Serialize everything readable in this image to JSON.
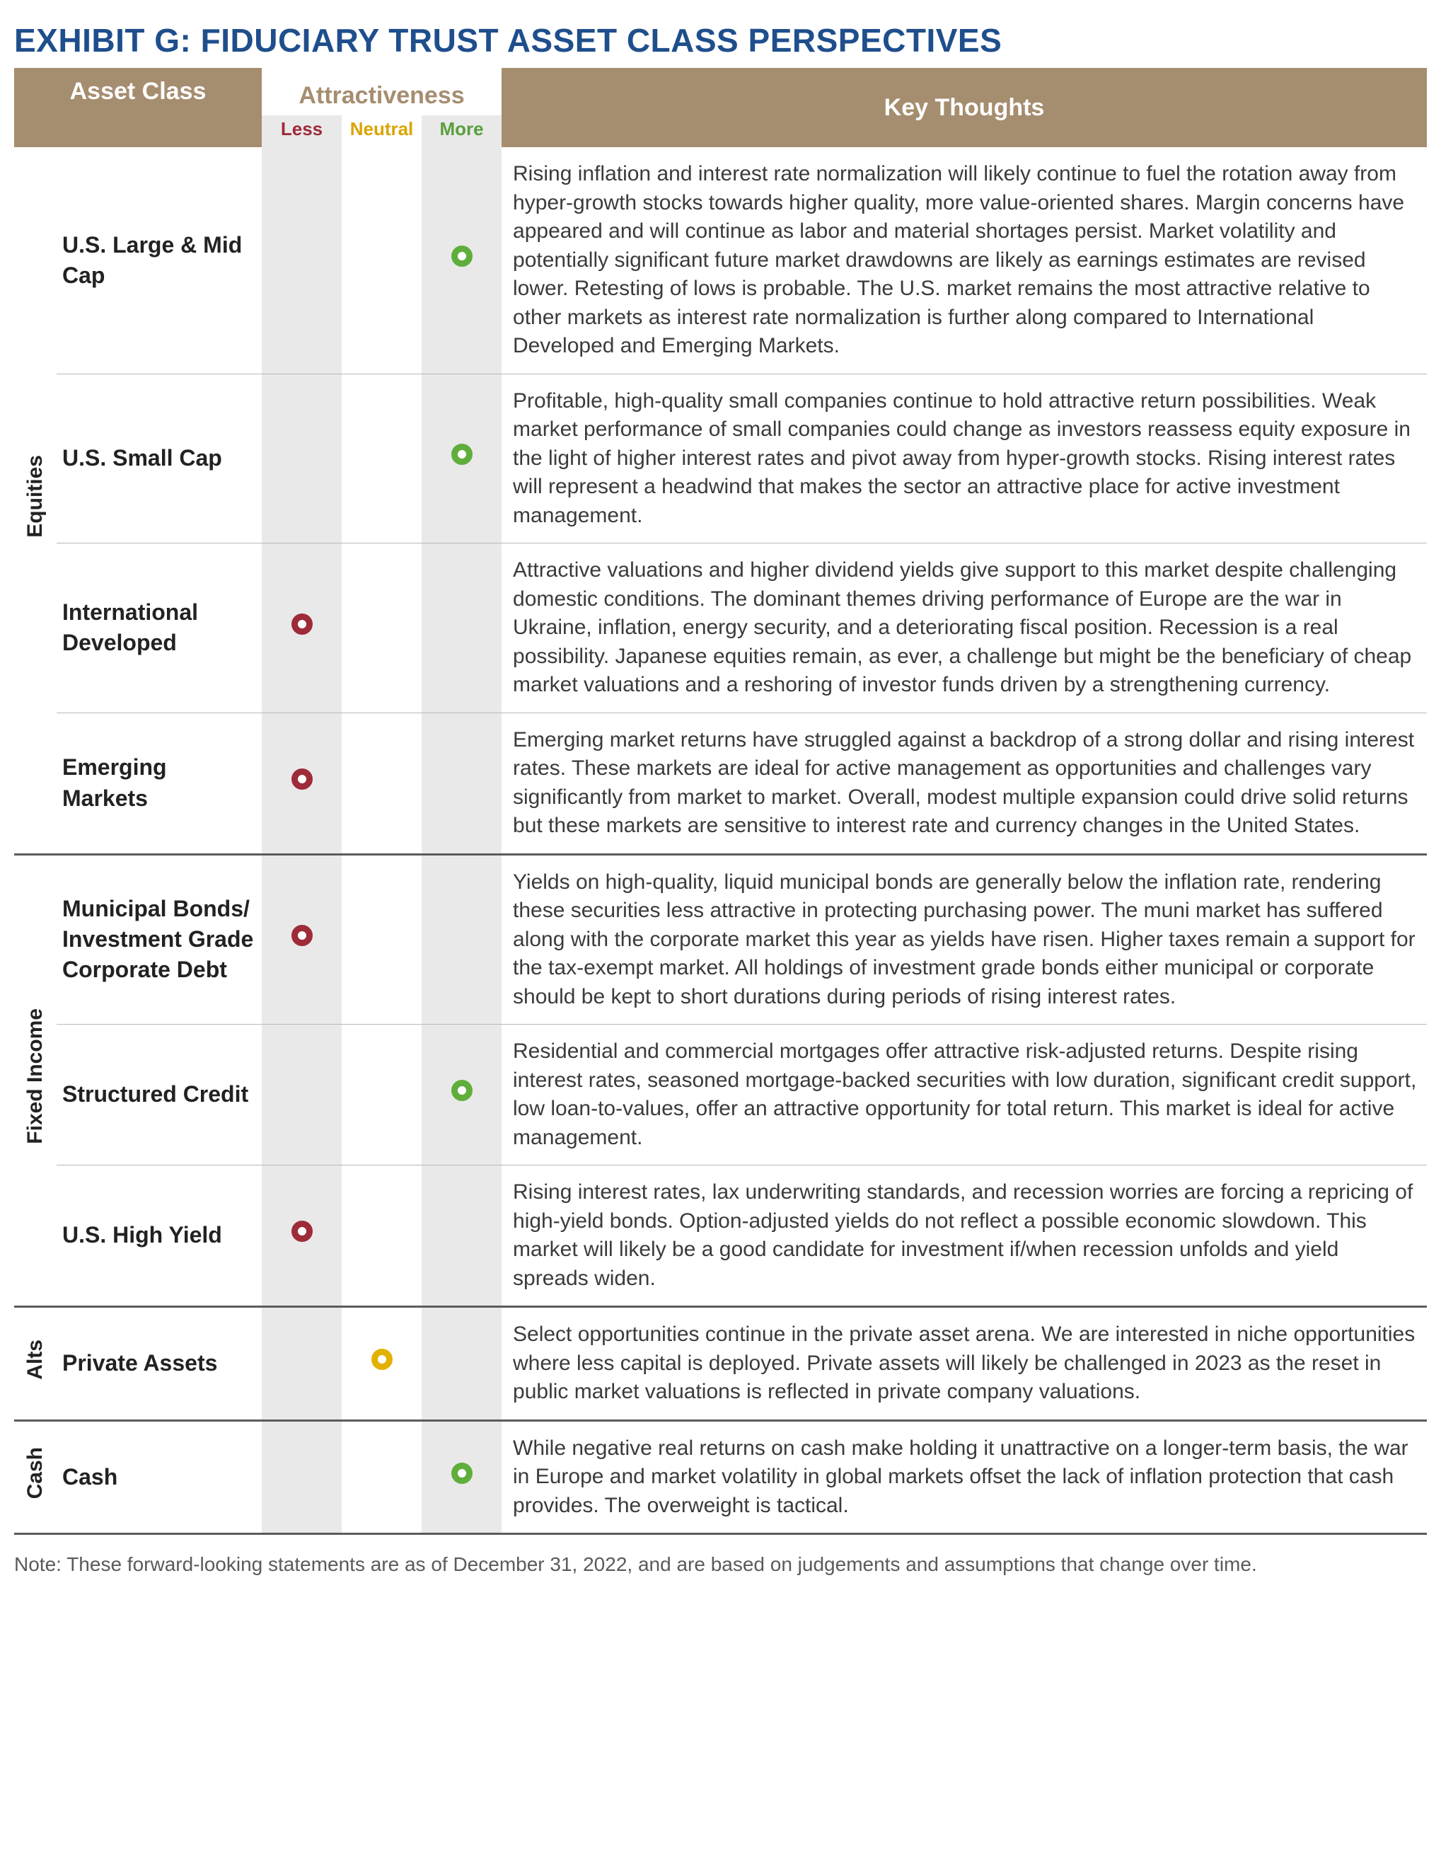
{
  "title": "EXHIBIT G: FIDUCIARY TRUST ASSET CLASS PERSPECTIVES",
  "colors": {
    "title": "#1f4e8c",
    "header_bg": "#a58d6f",
    "header_fg": "#ffffff",
    "shaded_col": "#e9e9e9",
    "less": "#9e2b3a",
    "neutral": "#e3b100",
    "more": "#5fae3c",
    "attr_label": "#a58d6f",
    "divider_thin": "#b8b8b8",
    "divider_thick": "#5b5b5b",
    "body_text": "#3b3b3b",
    "footnote": "#5a5a5a"
  },
  "headers": {
    "asset_class": "Asset Class",
    "attractiveness": "Attractiveness",
    "key_thoughts": "Key Thoughts",
    "less": "Less",
    "neutral": "Neutral",
    "more": "More"
  },
  "groups": [
    {
      "category": "Equities",
      "rows": [
        {
          "name": "U.S. Large & Mid Cap",
          "rating": "more",
          "thoughts": "Rising inflation and interest rate normalization will likely continue to fuel the rotation away from hyper-growth stocks towards higher quality, more value-oriented shares. Margin concerns have appeared and will continue as labor and material shortages persist. Market volatility and potentially significant future market drawdowns are likely as earnings estimates are revised lower. Retesting of lows is probable. The U.S. market remains the most attractive relative to other markets as interest rate normalization is further along compared to International Developed and Emerging Markets."
        },
        {
          "name": "U.S. Small Cap",
          "rating": "more",
          "thoughts": "Profitable, high-quality small companies continue to hold attractive return possibilities. Weak market performance of small companies could change as investors reassess equity exposure in the light of higher interest rates and pivot away from hyper-growth stocks. Rising interest rates will represent a headwind that makes the sector an attractive place for active investment management."
        },
        {
          "name": "International Developed",
          "rating": "less",
          "thoughts": "Attractive valuations and higher dividend yields give support to this market despite challenging domestic conditions. The dominant themes driving performance of Europe are the war in Ukraine, inflation, energy security, and a deteriorating fiscal position. Recession is a real possibility. Japanese equities remain, as ever, a challenge but might be the beneficiary of cheap market valuations and a reshoring of investor funds driven by a strengthening currency."
        },
        {
          "name": "Emerging Markets",
          "rating": "less",
          "thoughts": "Emerging market returns have struggled against a backdrop of a strong dollar and rising interest rates. These markets are ideal for active management as opportunities and challenges vary significantly from market to market. Overall, modest multiple expansion could drive solid returns but these markets are sensitive to interest rate and currency changes in the United States."
        }
      ]
    },
    {
      "category": "Fixed Income",
      "rows": [
        {
          "name": "Municipal Bonds/ Investment Grade Corporate Debt",
          "rating": "less",
          "thoughts": "Yields on high-quality, liquid municipal bonds are generally below the inflation rate, rendering these securities less attractive in protecting purchasing power. The muni market has suffered along with the corporate market this year as yields have risen. Higher taxes remain a support for the tax-exempt market. All holdings of investment grade bonds either municipal or corporate should be kept to short durations during periods of rising interest rates."
        },
        {
          "name": "Structured Credit",
          "rating": "more",
          "thoughts": "Residential and commercial mortgages offer attractive risk-adjusted returns. Despite rising interest rates, seasoned mortgage-backed securities with low duration, significant credit support, low loan-to-values,  offer an attractive opportunity for total return. This market is ideal for active management."
        },
        {
          "name": "U.S. High Yield",
          "rating": "less",
          "thoughts": "Rising interest rates, lax underwriting standards, and recession worries are forcing a repricing of high-yield bonds. Option-adjusted yields do not reflect a possible economic slowdown. This market will likely be a good candidate for investment if/when recession unfolds and yield spreads widen."
        }
      ]
    },
    {
      "category": "Alts",
      "rows": [
        {
          "name": "Private Assets",
          "rating": "neutral",
          "thoughts": "Select opportunities continue in the private asset arena. We are interested in niche opportunities where less capital is deployed. Private assets will likely be challenged in 2023 as the reset in public market valuations is reflected in private company valuations."
        }
      ]
    },
    {
      "category": "Cash",
      "rows": [
        {
          "name": "Cash",
          "rating": "more",
          "thoughts": "While negative real returns on cash make holding it unattractive on a longer-term basis, the war in Europe and market volatility in global markets offset the lack of inflation protection that cash provides. The overweight is tactical."
        }
      ]
    }
  ],
  "footnote": "Note: These forward-looking statements are as of December 31, 2022, and are based on judgements and assumptions that change over time."
}
